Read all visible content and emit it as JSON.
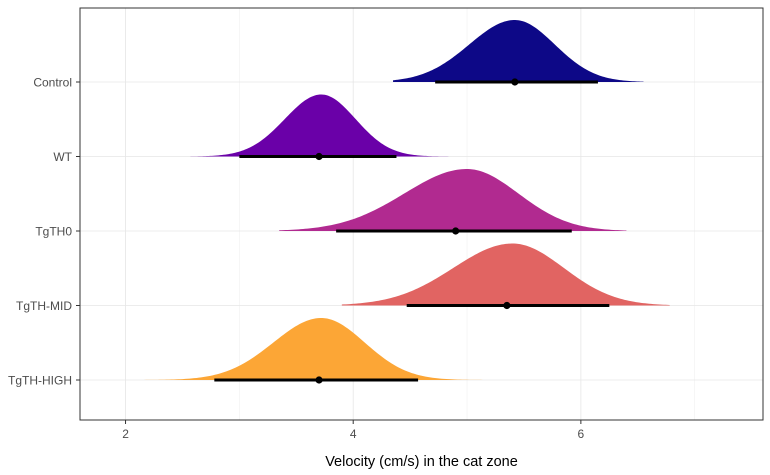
{
  "chart_data": {
    "type": "halfeye",
    "title": "",
    "xlabel": "Velocity (cm/s) in the cat zone",
    "ylabel": "",
    "xlim": [
      1.6,
      7.6
    ],
    "x_ticks": [
      2,
      4,
      6
    ],
    "x_minor_ticks": [
      3,
      5,
      7
    ],
    "grid": true,
    "legend": "none",
    "categories": [
      "Control",
      "WT",
      "TgTH0",
      "TgTH-MID",
      "TgTH-HIGH"
    ],
    "series": [
      {
        "category": "Control",
        "color": "#0d0887",
        "mode": 5.42,
        "sd_left": 0.4,
        "sd_right": 0.35,
        "support": [
          4.35,
          6.55
        ],
        "point": 5.42,
        "interval": [
          4.72,
          6.15
        ]
      },
      {
        "category": "WT",
        "color": "#6a00a8",
        "mode": 3.72,
        "sd_left": 0.32,
        "sd_right": 0.3,
        "support": [
          2.57,
          4.9
        ],
        "point": 3.7,
        "interval": [
          3.0,
          4.38
        ]
      },
      {
        "category": "TgTH0",
        "color": "#b12a90",
        "mode": 5.0,
        "sd_left": 0.55,
        "sd_right": 0.45,
        "support": [
          3.35,
          6.4
        ],
        "point": 4.9,
        "interval": [
          3.85,
          5.92
        ]
      },
      {
        "category": "TgTH-MID",
        "color": "#e16462",
        "mode": 5.4,
        "sd_left": 0.52,
        "sd_right": 0.45,
        "support": [
          3.9,
          6.78
        ],
        "point": 5.35,
        "interval": [
          4.47,
          6.25
        ]
      },
      {
        "category": "TgTH-HIGH",
        "color": "#fca636",
        "mode": 3.72,
        "sd_left": 0.42,
        "sd_right": 0.38,
        "support": [
          1.98,
          5.2
        ],
        "point": 3.7,
        "interval": [
          2.78,
          4.57
        ]
      }
    ]
  }
}
